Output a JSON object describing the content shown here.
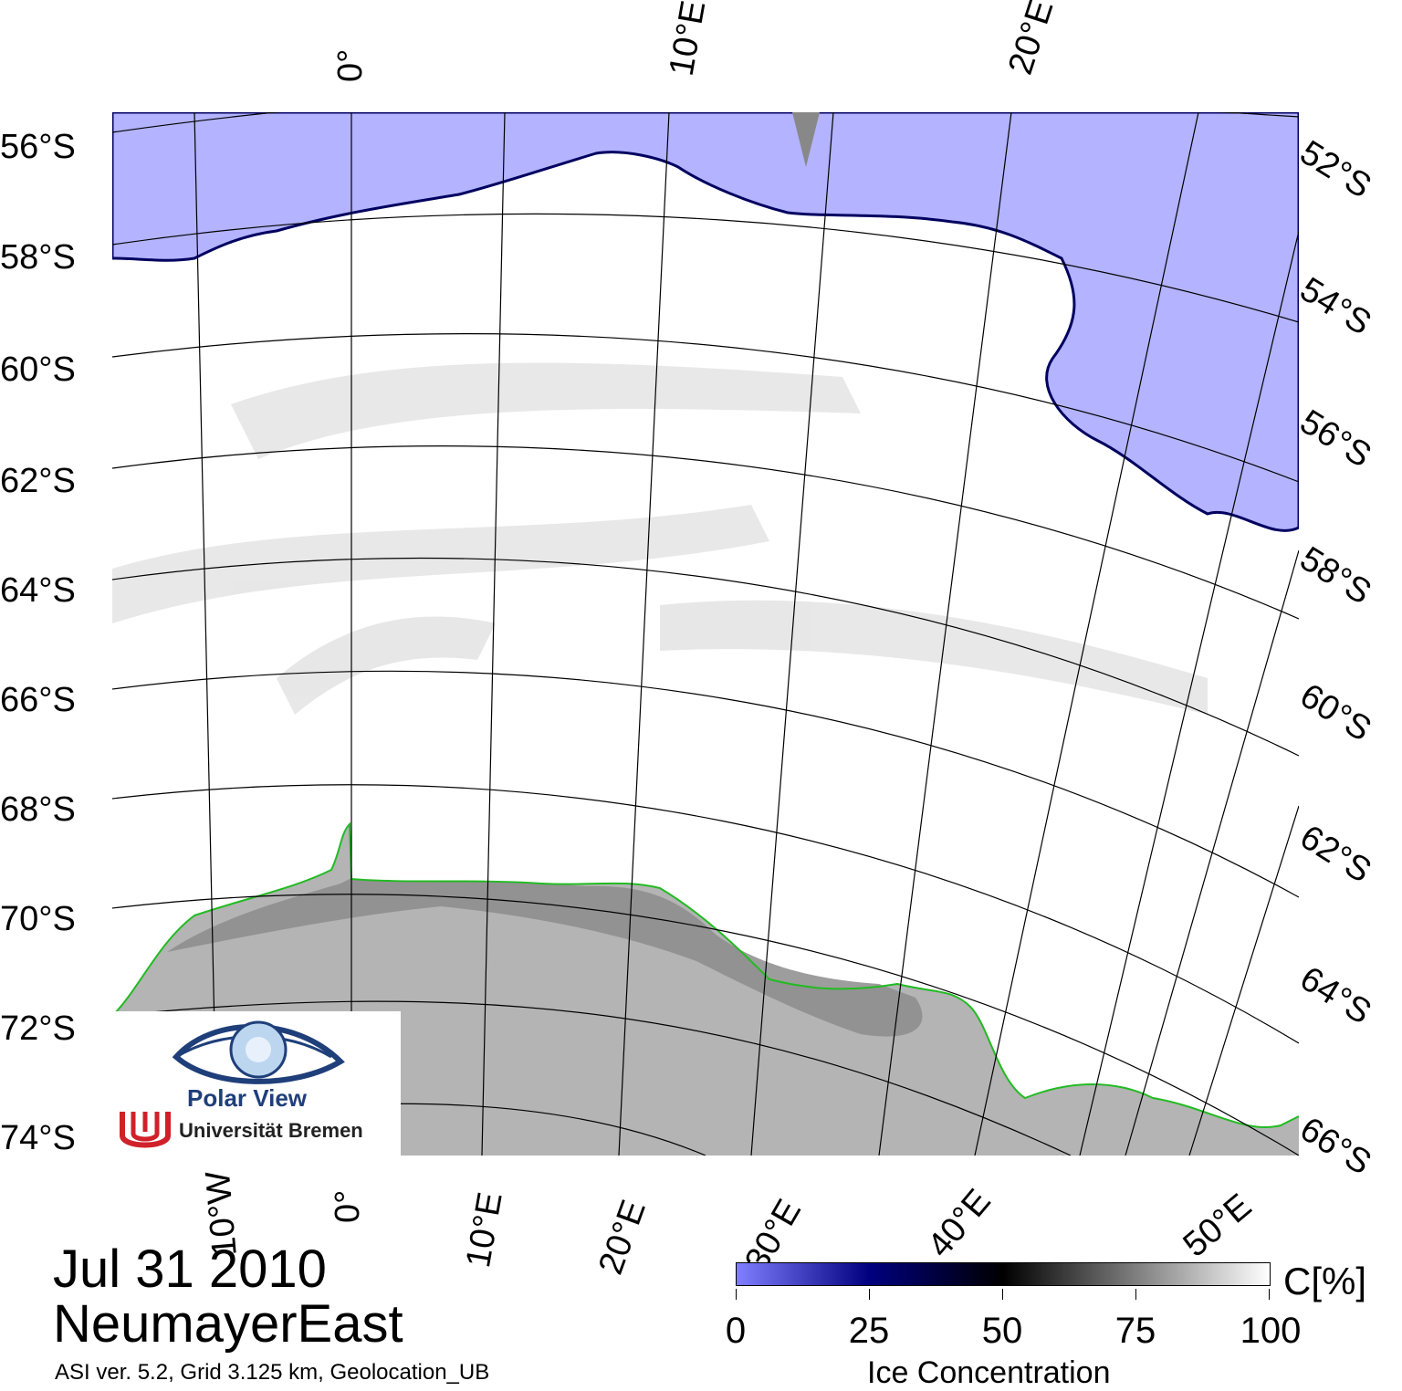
{
  "map": {
    "lat_labels_left": [
      "56°S",
      "58°S",
      "60°S",
      "62°S",
      "64°S",
      "66°S",
      "68°S",
      "70°S",
      "72°S",
      "74°S"
    ],
    "lat_labels_right": [
      "52°S",
      "54°S",
      "56°S",
      "58°S",
      "60°S",
      "62°S",
      "64°S",
      "66°S"
    ],
    "lon_labels_top": [
      "0°",
      "10°E",
      "20°E"
    ],
    "lon_labels_bottom": [
      "10°W",
      "0°",
      "10°E",
      "20°E",
      "30°E",
      "40°E",
      "50°E"
    ],
    "colors": {
      "open_water": "#b3b3ff",
      "land_ice_shelf": "#8c8c8c",
      "land": "#b4b4b4",
      "coastline": "#22bb22",
      "sea_ice": "#ffffff",
      "grid": "#000000"
    }
  },
  "logo": {
    "title": "Polar View",
    "subtitle": "Universität Bremen"
  },
  "date": "Jul 31 2010",
  "region": "NeumayerEast",
  "meta": "ASI ver. 5.2,  Grid 3.125 km, Geolocation_UB",
  "colorbar": {
    "ticks": [
      "0",
      "25",
      "50",
      "75",
      "100"
    ],
    "unit": "C[%]",
    "title": "Ice Concentration"
  }
}
